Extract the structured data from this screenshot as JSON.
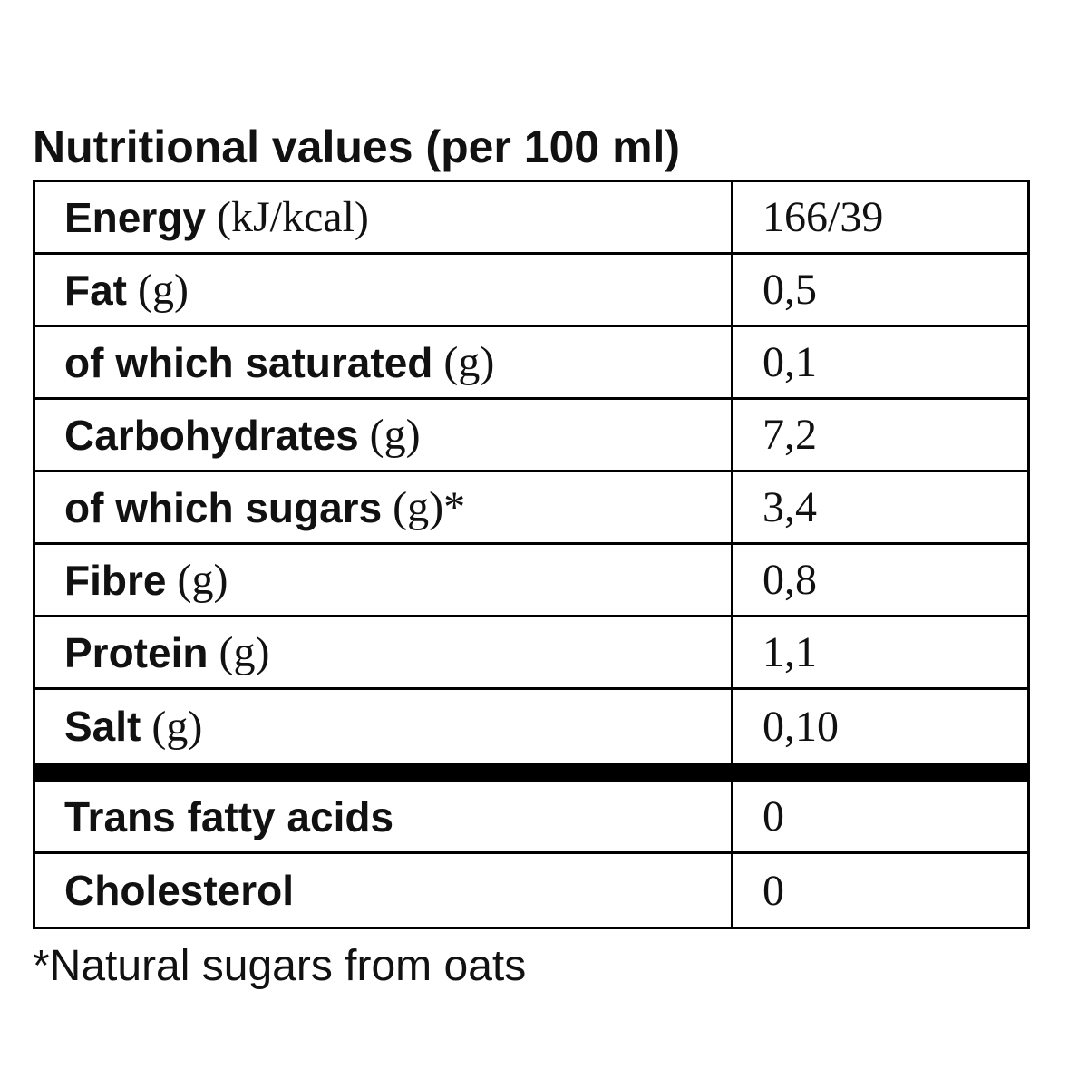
{
  "title": "Nutritional values (per 100 ml)",
  "rows": [
    {
      "name": "Energy",
      "unit": "(kJ/kcal)",
      "value": "166/39"
    },
    {
      "name": "Fat",
      "unit": "(g)",
      "value": "0,5"
    },
    {
      "name": "of which saturated",
      "unit": "(g)",
      "value": "0,1"
    },
    {
      "name": "Carbohydrates",
      "unit": "(g)",
      "value": "7,2"
    },
    {
      "name": "of which sugars",
      "unit": "(g)*",
      "value": "3,4"
    },
    {
      "name": "Fibre",
      "unit": "(g)",
      "value": "0,8"
    },
    {
      "name": "Protein",
      "unit": "(g)",
      "value": "1,1"
    },
    {
      "name": "Salt",
      "unit": "(g)",
      "value": "0,10"
    }
  ],
  "extra_rows": [
    {
      "name": "Trans fatty acids",
      "value": "0"
    },
    {
      "name": "Cholesterol",
      "value": "0"
    }
  ],
  "footnote": "*Natural sugars from oats"
}
